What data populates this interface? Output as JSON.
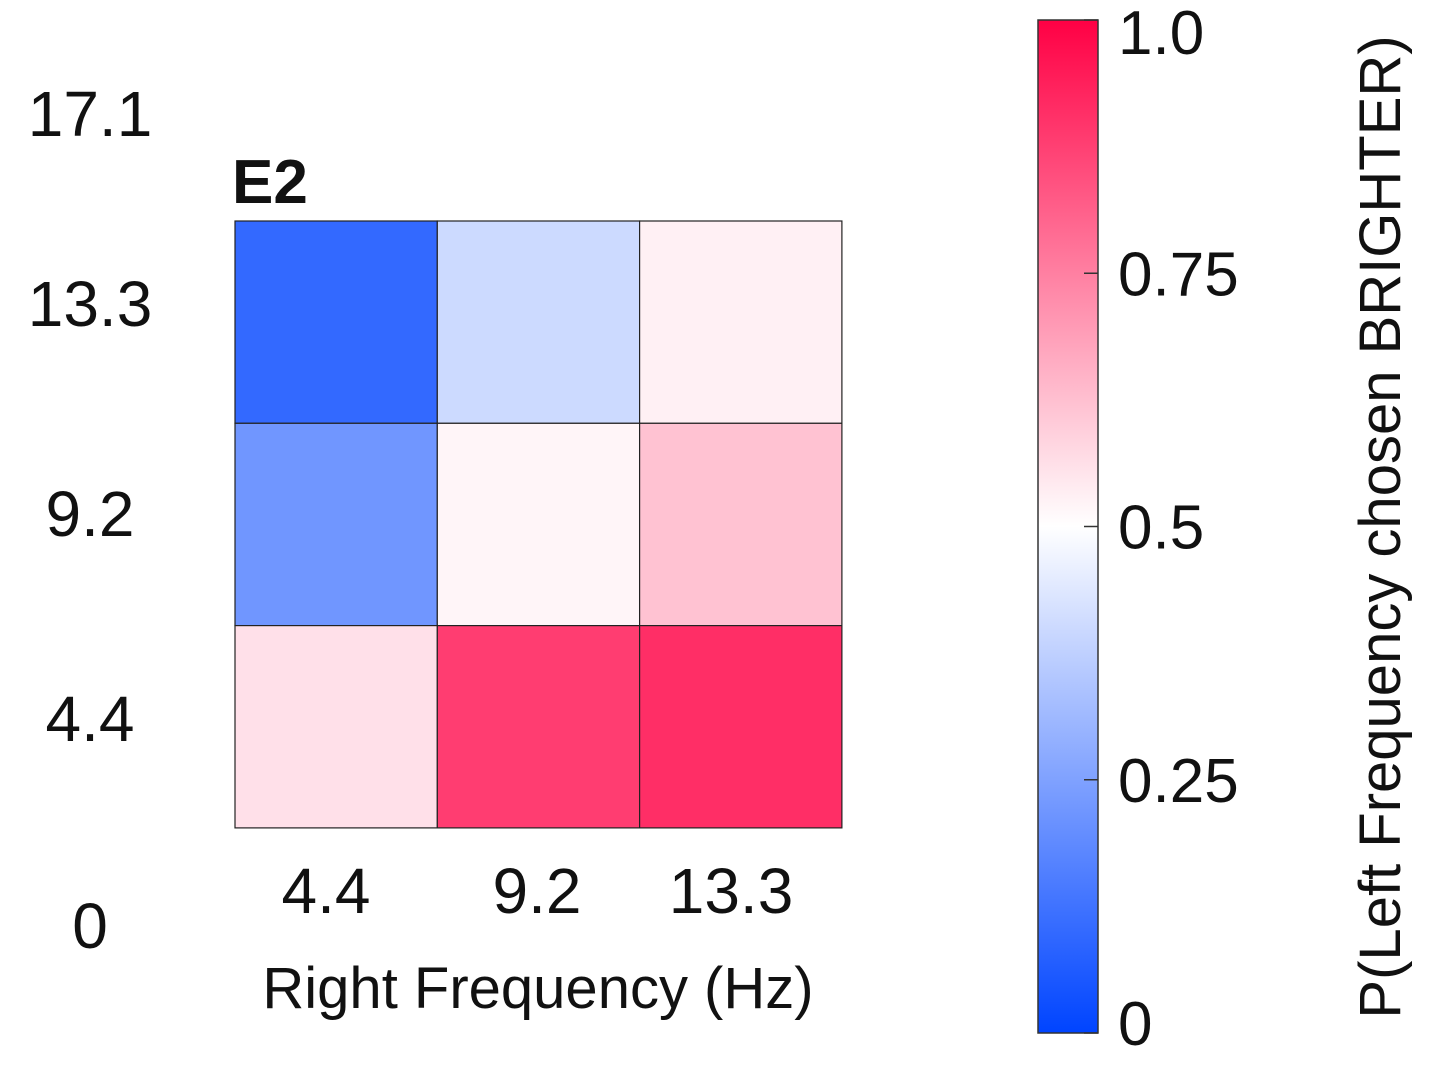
{
  "chart_data": {
    "type": "heatmap",
    "title": "E2",
    "xlabel": "Right Frequency (Hz)",
    "ylabel": "",
    "x_categories": [
      "4.4",
      "9.2",
      "13.3"
    ],
    "y_categories": [
      "13.3",
      "9.2",
      "4.4"
    ],
    "y_axis_labels": [
      "17.1",
      "13.3",
      "9.2",
      "4.4",
      "0"
    ],
    "values": [
      [
        0.1,
        0.4,
        0.53
      ],
      [
        0.22,
        0.52,
        0.62
      ],
      [
        0.56,
        0.88,
        0.91
      ]
    ],
    "colorbar": {
      "label": "P(Left Frequency chosen BRIGHTER)",
      "range": [
        0,
        1
      ],
      "ticks": [
        "0",
        "0.25",
        "0.5",
        "0.75",
        "1.0"
      ],
      "tick_values": [
        0,
        0.25,
        0.5,
        0.75,
        1.0
      ],
      "colors": {
        "low": "#0044ff",
        "mid": "#ffffff",
        "high": "#ff0044"
      }
    }
  }
}
